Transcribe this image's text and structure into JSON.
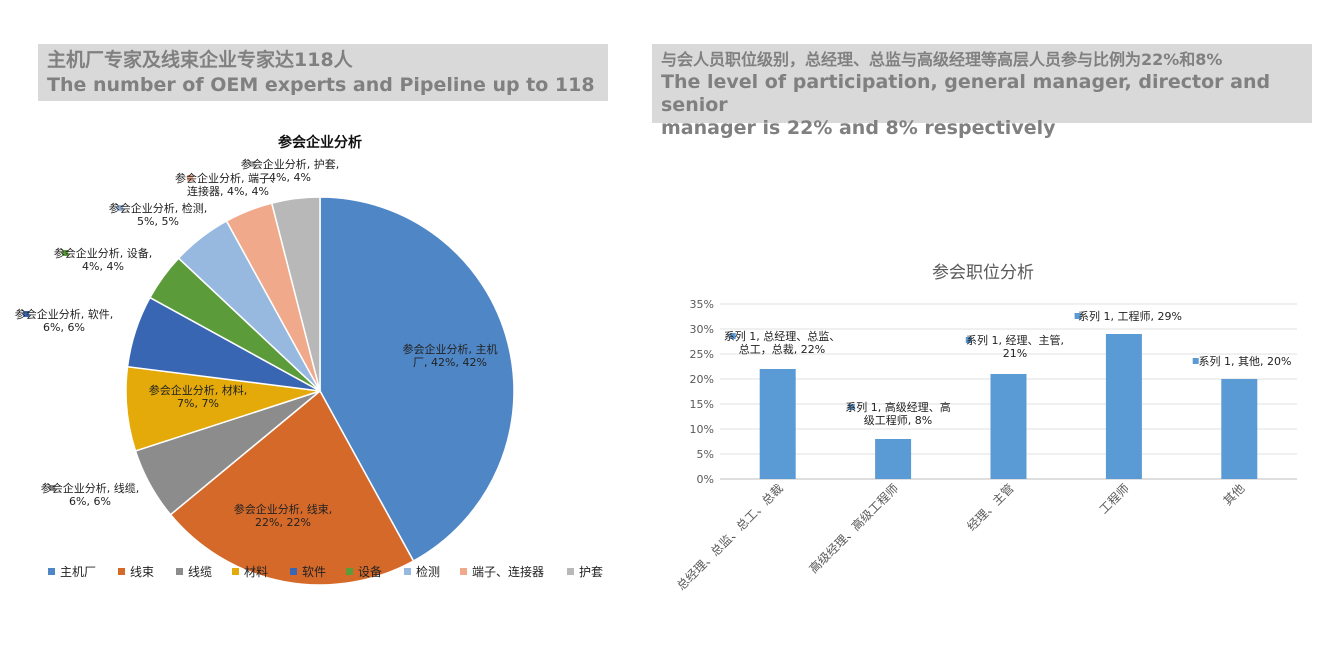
{
  "banners": {
    "left_cn": "主机厂专家及线束企业专家达118人",
    "left_en": "The number of OEM experts and Pipeline up to 118",
    "right_cn": "与会人员职位级别，总经理、总监与高级经理等高层人员参与比例为22%和8%",
    "right_en_1": "The level of participation, general manager, director and senior",
    "right_en_2": "manager is 22% and 8% respectively"
  },
  "chart_data": [
    {
      "type": "pie",
      "title": "参会企业分析",
      "series_name": "参会企业分析",
      "categories": [
        "主机厂",
        "线束",
        "线缆",
        "材料",
        "软件",
        "设备",
        "检测",
        "端子、连接器",
        "护套"
      ],
      "values": [
        42,
        22,
        6,
        7,
        6,
        4,
        5,
        4,
        4
      ],
      "value_labels": [
        "42%",
        "22%",
        "6%",
        "7%",
        "6%",
        "4%",
        "5%",
        "4%",
        "4%"
      ],
      "colors": [
        "#4f86c6",
        "#d5692a",
        "#8c8c8c",
        "#e3aa0a",
        "#3866b3",
        "#5b9b3a",
        "#97b9e0",
        "#f0a98a",
        "#b8b8b8"
      ],
      "legend": "bottom",
      "data_labels": [
        [
          "参会企业分析, 主机",
          "厂, 42%, 42%"
        ],
        [
          "参会企业分析, 线束,",
          "22%, 22%"
        ],
        [
          "参会企业分析, 线缆,",
          "6%, 6%"
        ],
        [
          "参会企业分析, 材料,",
          "7%, 7%"
        ],
        [
          "参会企业分析, 软件,",
          "6%, 6%"
        ],
        [
          "参会企业分析, 设备,",
          "4%, 4%"
        ],
        [
          "参会企业分析, 检测,",
          "5%, 5%"
        ],
        [
          "参会企业分析, 端子、",
          "连接器, 4%, 4%"
        ],
        [
          "参会企业分析, 护套,",
          "4%, 4%"
        ]
      ]
    },
    {
      "type": "bar",
      "title": "参会职位分析",
      "categories": [
        "总经理、总监、总工、总裁",
        "高级经理、高级工程师",
        "经理、主管",
        "工程师",
        "其他"
      ],
      "series": [
        {
          "name": "系列 1",
          "values": [
            22,
            8,
            21,
            29,
            20
          ]
        }
      ],
      "ylim": [
        0,
        35
      ],
      "yticks": [
        "0%",
        "5%",
        "10%",
        "15%",
        "20%",
        "25%",
        "30%",
        "35%"
      ],
      "color": "#5b9bd5",
      "grid": true,
      "data_labels": [
        [
          "系列 1, 总经理、总监、",
          "总工，总裁, 22%"
        ],
        [
          "系列 1, 高级经理、高",
          "级工程师, 8%"
        ],
        [
          "系列 1, 经理、主管,",
          "21%"
        ],
        [
          "系列 1, 工程师, 29%"
        ],
        [
          "系列 1, 其他, 20%"
        ]
      ]
    }
  ]
}
